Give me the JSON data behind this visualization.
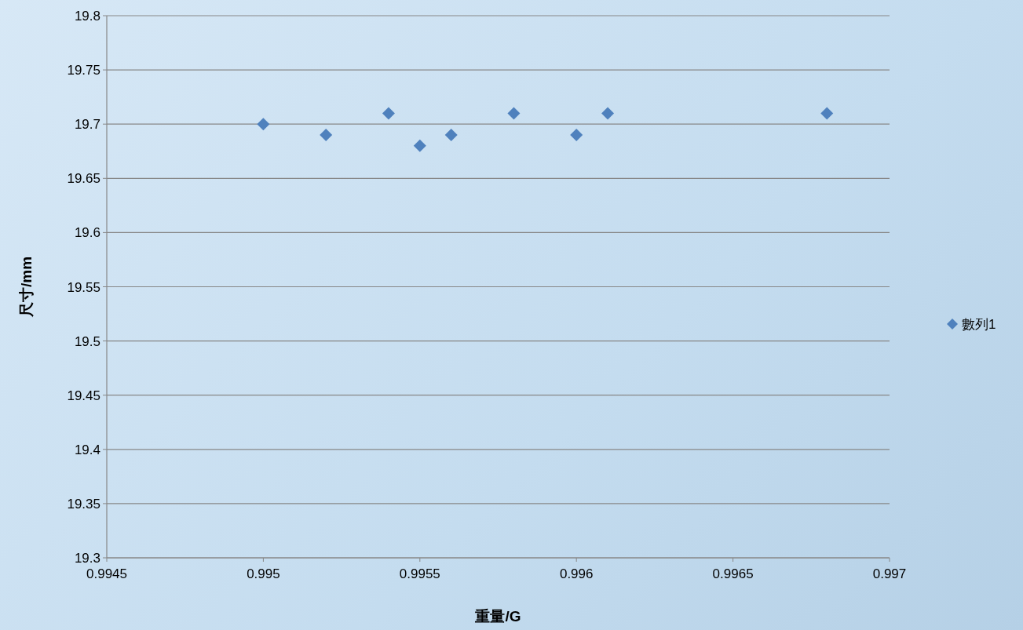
{
  "chart_data": {
    "type": "scatter",
    "xlabel": "重量/G",
    "ylabel": "尺寸/mm",
    "x": [
      0.995,
      0.9952,
      0.9954,
      0.9955,
      0.9956,
      0.9958,
      0.996,
      0.9961,
      0.9968
    ],
    "series": [
      {
        "name": "數列1",
        "color": "#4f81bd",
        "values": [
          19.7,
          19.69,
          19.71,
          19.68,
          19.69,
          19.71,
          19.69,
          19.71,
          19.71
        ]
      }
    ],
    "xlim": [
      0.9945,
      0.997
    ],
    "xticks": [
      0.9945,
      0.995,
      0.9955,
      0.996,
      0.9965,
      0.997
    ],
    "ylim": [
      19.3,
      19.8
    ],
    "yticks": [
      19.3,
      19.35,
      19.4,
      19.45,
      19.5,
      19.55,
      19.6,
      19.65,
      19.7,
      19.75,
      19.8
    ],
    "grid": "y",
    "legend": "right",
    "marker": "diamond"
  }
}
